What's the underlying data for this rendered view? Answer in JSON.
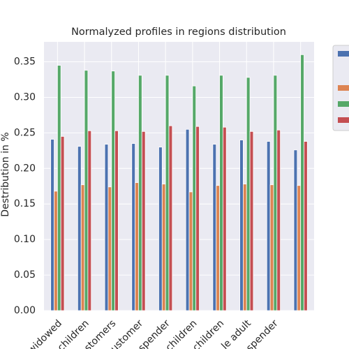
{
  "chart_data": {
    "type": "bar",
    "title": "Normalyzed profiles in regions distribution",
    "y_label": "Destribution in %",
    "categories": [
      null,
      "widowed",
      "children",
      "stomers",
      "customer",
      "spender",
      "children",
      "children",
      "le adult",
      "spender"
    ],
    "series": [
      {
        "color": "#4c72b0",
        "values": [
          0.241,
          0.231,
          0.234,
          0.235,
          0.23,
          0.255,
          0.234,
          0.24,
          0.238,
          0.226
        ]
      },
      {
        "color": "#dd8452",
        "values": [
          0.168,
          0.177,
          0.174,
          0.18,
          0.178,
          0.167,
          0.176,
          0.178,
          0.177,
          0.176
        ]
      },
      {
        "color": "#55a868",
        "values": [
          0.345,
          0.338,
          0.337,
          0.331,
          0.331,
          0.316,
          0.331,
          0.328,
          0.331,
          0.36
        ]
      },
      {
        "color": "#c44e52",
        "values": [
          0.245,
          0.253,
          0.253,
          0.252,
          0.26,
          0.259,
          0.258,
          0.252,
          0.254,
          0.238
        ]
      }
    ],
    "ylim": [
      0,
      0.378
    ],
    "yticks": [
      {
        "value": 0,
        "label": "0.00"
      },
      {
        "value": 0.05,
        "label": "0.05"
      },
      {
        "value": 0.1,
        "label": "0.10"
      },
      {
        "value": 0.15,
        "label": "0.15"
      },
      {
        "value": 0.2,
        "label": "0.20"
      },
      {
        "value": 0.25,
        "label": "0.25"
      },
      {
        "value": 0.3,
        "label": "0.30"
      },
      {
        "value": 0.35,
        "label": "0.35"
      }
    ],
    "grid": true
  }
}
